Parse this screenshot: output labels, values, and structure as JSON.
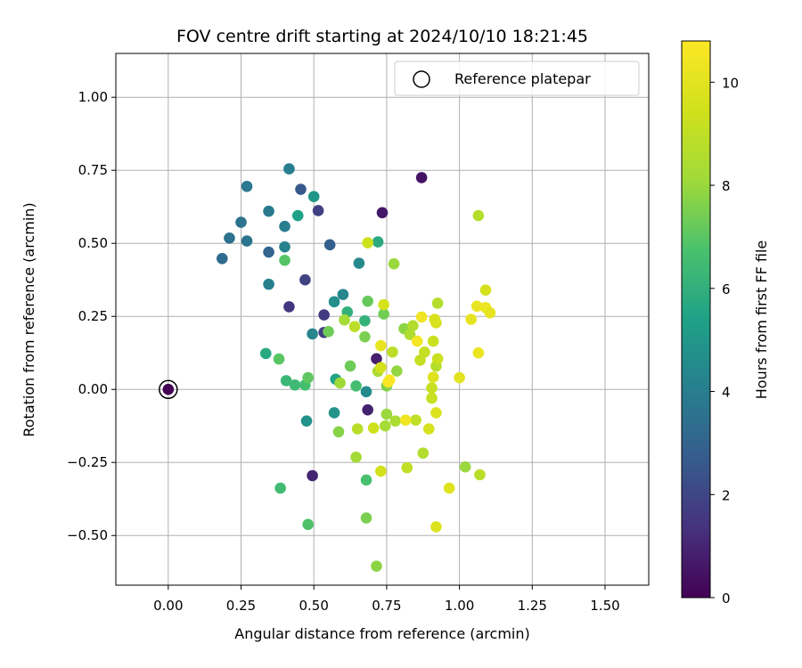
{
  "chart_data": {
    "type": "scatter",
    "title": "FOV centre drift starting at 2024/10/10 18:21:45",
    "xlabel": "Angular distance from reference (arcmin)",
    "ylabel": "Rotation from reference (arcmin)",
    "xlim": [
      -0.18,
      1.65
    ],
    "ylim": [
      -0.67,
      1.15
    ],
    "xticks": [
      0.0,
      0.25,
      0.5,
      0.75,
      1.0,
      1.25,
      1.5
    ],
    "xtick_labels": [
      "0.00",
      "0.25",
      "0.50",
      "0.75",
      "1.00",
      "1.25",
      "1.50"
    ],
    "yticks": [
      -0.5,
      -0.25,
      0.0,
      0.25,
      0.5,
      0.75,
      1.0
    ],
    "ytick_labels": [
      "−0.50",
      "−0.25",
      "0.00",
      "0.25",
      "0.50",
      "0.75",
      "1.00"
    ],
    "grid": true,
    "legend": {
      "placement": "top-right",
      "label": "Reference platepar"
    },
    "reference_point": {
      "x": 0.0,
      "y": 0.0
    },
    "colorbar": {
      "label": "Hours from first FF file",
      "colormap": "viridis",
      "range": [
        0,
        10.8
      ],
      "ticks": [
        0,
        2,
        4,
        6,
        8,
        10
      ],
      "tick_labels": [
        "0",
        "2",
        "4",
        "6",
        "8",
        "10"
      ]
    },
    "points": [
      {
        "x": 0.0,
        "y": 0.0,
        "c": 0.0
      },
      {
        "x": 0.87,
        "y": 0.725,
        "c": 0.5
      },
      {
        "x": 0.735,
        "y": 0.605,
        "c": 0.6
      },
      {
        "x": 0.715,
        "y": 0.105,
        "c": 0.8
      },
      {
        "x": 0.685,
        "y": -0.07,
        "c": 0.9
      },
      {
        "x": 0.495,
        "y": -0.295,
        "c": 1.0
      },
      {
        "x": 0.415,
        "y": 0.283,
        "c": 1.5
      },
      {
        "x": 0.535,
        "y": 0.255,
        "c": 1.6
      },
      {
        "x": 0.535,
        "y": 0.195,
        "c": 1.7
      },
      {
        "x": 0.515,
        "y": 0.612,
        "c": 1.8
      },
      {
        "x": 0.47,
        "y": 0.375,
        "c": 1.9
      },
      {
        "x": 0.455,
        "y": 0.685,
        "c": 2.6
      },
      {
        "x": 0.555,
        "y": 0.495,
        "c": 2.8
      },
      {
        "x": 0.345,
        "y": 0.47,
        "c": 3.0
      },
      {
        "x": 0.185,
        "y": 0.448,
        "c": 3.3
      },
      {
        "x": 0.21,
        "y": 0.518,
        "c": 3.5
      },
      {
        "x": 0.25,
        "y": 0.572,
        "c": 3.6
      },
      {
        "x": 0.27,
        "y": 0.508,
        "c": 3.7
      },
      {
        "x": 0.27,
        "y": 0.695,
        "c": 3.8
      },
      {
        "x": 0.345,
        "y": 0.61,
        "c": 3.8
      },
      {
        "x": 0.415,
        "y": 0.755,
        "c": 4.0
      },
      {
        "x": 0.4,
        "y": 0.558,
        "c": 4.0
      },
      {
        "x": 0.345,
        "y": 0.36,
        "c": 4.1
      },
      {
        "x": 0.4,
        "y": 0.488,
        "c": 4.2
      },
      {
        "x": 0.495,
        "y": 0.19,
        "c": 4.3
      },
      {
        "x": 0.6,
        "y": 0.325,
        "c": 4.3
      },
      {
        "x": 0.655,
        "y": 0.432,
        "c": 4.4
      },
      {
        "x": 0.68,
        "y": -0.008,
        "c": 4.5
      },
      {
        "x": 0.57,
        "y": 0.3,
        "c": 4.7
      },
      {
        "x": 0.475,
        "y": -0.108,
        "c": 4.8
      },
      {
        "x": 0.57,
        "y": -0.08,
        "c": 4.9
      },
      {
        "x": 0.5,
        "y": 0.66,
        "c": 5.0
      },
      {
        "x": 0.445,
        "y": 0.595,
        "c": 5.4
      },
      {
        "x": 0.575,
        "y": 0.035,
        "c": 5.5
      },
      {
        "x": 0.335,
        "y": 0.123,
        "c": 5.7
      },
      {
        "x": 0.72,
        "y": 0.505,
        "c": 5.8
      },
      {
        "x": 0.615,
        "y": 0.265,
        "c": 6.0
      },
      {
        "x": 0.675,
        "y": 0.235,
        "c": 6.1
      },
      {
        "x": 0.405,
        "y": 0.03,
        "c": 6.3
      },
      {
        "x": 0.435,
        "y": 0.015,
        "c": 6.4
      },
      {
        "x": 0.385,
        "y": -0.338,
        "c": 6.5
      },
      {
        "x": 0.47,
        "y": 0.015,
        "c": 6.6
      },
      {
        "x": 0.645,
        "y": 0.012,
        "c": 6.6
      },
      {
        "x": 0.68,
        "y": -0.31,
        "c": 6.7
      },
      {
        "x": 0.48,
        "y": -0.462,
        "c": 6.8
      },
      {
        "x": 0.4,
        "y": 0.442,
        "c": 6.9
      },
      {
        "x": 0.38,
        "y": 0.104,
        "c": 7.0
      },
      {
        "x": 0.48,
        "y": 0.04,
        "c": 7.1
      },
      {
        "x": 0.685,
        "y": 0.302,
        "c": 7.2
      },
      {
        "x": 0.55,
        "y": 0.198,
        "c": 7.3
      },
      {
        "x": 0.625,
        "y": 0.08,
        "c": 7.3
      },
      {
        "x": 0.74,
        "y": 0.258,
        "c": 7.4
      },
      {
        "x": 0.675,
        "y": 0.18,
        "c": 7.5
      },
      {
        "x": 0.68,
        "y": -0.44,
        "c": 7.5
      },
      {
        "x": 0.75,
        "y": 0.012,
        "c": 7.6
      },
      {
        "x": 0.585,
        "y": -0.145,
        "c": 7.7
      },
      {
        "x": 0.715,
        "y": -0.605,
        "c": 7.8
      },
      {
        "x": 0.81,
        "y": 0.208,
        "c": 7.8
      },
      {
        "x": 0.785,
        "y": 0.063,
        "c": 7.9
      },
      {
        "x": 0.75,
        "y": -0.085,
        "c": 8.0
      },
      {
        "x": 0.775,
        "y": 0.43,
        "c": 8.0
      },
      {
        "x": 0.59,
        "y": 0.022,
        "c": 8.1
      },
      {
        "x": 0.605,
        "y": 0.238,
        "c": 8.2
      },
      {
        "x": 0.645,
        "y": -0.232,
        "c": 8.2
      },
      {
        "x": 0.745,
        "y": -0.125,
        "c": 8.3
      },
      {
        "x": 0.72,
        "y": 0.062,
        "c": 8.4
      },
      {
        "x": 0.78,
        "y": -0.108,
        "c": 8.4
      },
      {
        "x": 0.83,
        "y": 0.188,
        "c": 8.5
      },
      {
        "x": 0.84,
        "y": 0.218,
        "c": 8.6
      },
      {
        "x": 0.875,
        "y": -0.218,
        "c": 8.6
      },
      {
        "x": 0.92,
        "y": 0.08,
        "c": 8.7
      },
      {
        "x": 0.925,
        "y": 0.295,
        "c": 8.7
      },
      {
        "x": 1.065,
        "y": 0.595,
        "c": 8.7
      },
      {
        "x": 1.07,
        "y": -0.292,
        "c": 8.8
      },
      {
        "x": 0.65,
        "y": -0.135,
        "c": 8.8
      },
      {
        "x": 0.64,
        "y": 0.215,
        "c": 8.9
      },
      {
        "x": 0.77,
        "y": 0.128,
        "c": 8.9
      },
      {
        "x": 0.82,
        "y": -0.268,
        "c": 9.0
      },
      {
        "x": 0.85,
        "y": -0.105,
        "c": 9.0
      },
      {
        "x": 0.865,
        "y": 0.1,
        "c": 9.1
      },
      {
        "x": 0.88,
        "y": 0.128,
        "c": 9.1
      },
      {
        "x": 0.905,
        "y": 0.005,
        "c": 9.2
      },
      {
        "x": 0.905,
        "y": -0.03,
        "c": 9.2
      },
      {
        "x": 0.925,
        "y": 0.105,
        "c": 9.3
      },
      {
        "x": 0.91,
        "y": 0.165,
        "c": 9.3
      },
      {
        "x": 0.685,
        "y": 0.502,
        "c": 9.4
      },
      {
        "x": 0.705,
        "y": -0.132,
        "c": 9.4
      },
      {
        "x": 0.73,
        "y": 0.075,
        "c": 9.5
      },
      {
        "x": 0.73,
        "y": -0.28,
        "c": 9.5
      },
      {
        "x": 0.74,
        "y": 0.29,
        "c": 9.6
      },
      {
        "x": 0.895,
        "y": -0.135,
        "c": 9.6
      },
      {
        "x": 0.915,
        "y": 0.24,
        "c": 9.7
      },
      {
        "x": 0.92,
        "y": 0.228,
        "c": 9.7
      },
      {
        "x": 0.92,
        "y": -0.08,
        "c": 9.8
      },
      {
        "x": 0.92,
        "y": -0.47,
        "c": 9.8
      },
      {
        "x": 0.91,
        "y": 0.042,
        "c": 9.9
      },
      {
        "x": 0.965,
        "y": -0.338,
        "c": 9.9
      },
      {
        "x": 1.0,
        "y": 0.04,
        "c": 10.0
      },
      {
        "x": 1.02,
        "y": -0.265,
        "c": 8.0
      },
      {
        "x": 1.04,
        "y": 0.24,
        "c": 10.1
      },
      {
        "x": 1.06,
        "y": 0.285,
        "c": 10.2
      },
      {
        "x": 1.065,
        "y": 0.125,
        "c": 10.3
      },
      {
        "x": 1.09,
        "y": 0.34,
        "c": 9.5
      },
      {
        "x": 1.09,
        "y": 0.28,
        "c": 10.3
      },
      {
        "x": 1.105,
        "y": 0.262,
        "c": 10.1
      },
      {
        "x": 0.73,
        "y": 0.15,
        "c": 10.2
      },
      {
        "x": 0.815,
        "y": -0.105,
        "c": 10.4
      },
      {
        "x": 0.855,
        "y": 0.165,
        "c": 10.5
      },
      {
        "x": 0.87,
        "y": 0.248,
        "c": 10.4
      },
      {
        "x": 0.755,
        "y": 0.025,
        "c": 10.6
      },
      {
        "x": 0.76,
        "y": 0.032,
        "c": 10.7
      }
    ]
  }
}
